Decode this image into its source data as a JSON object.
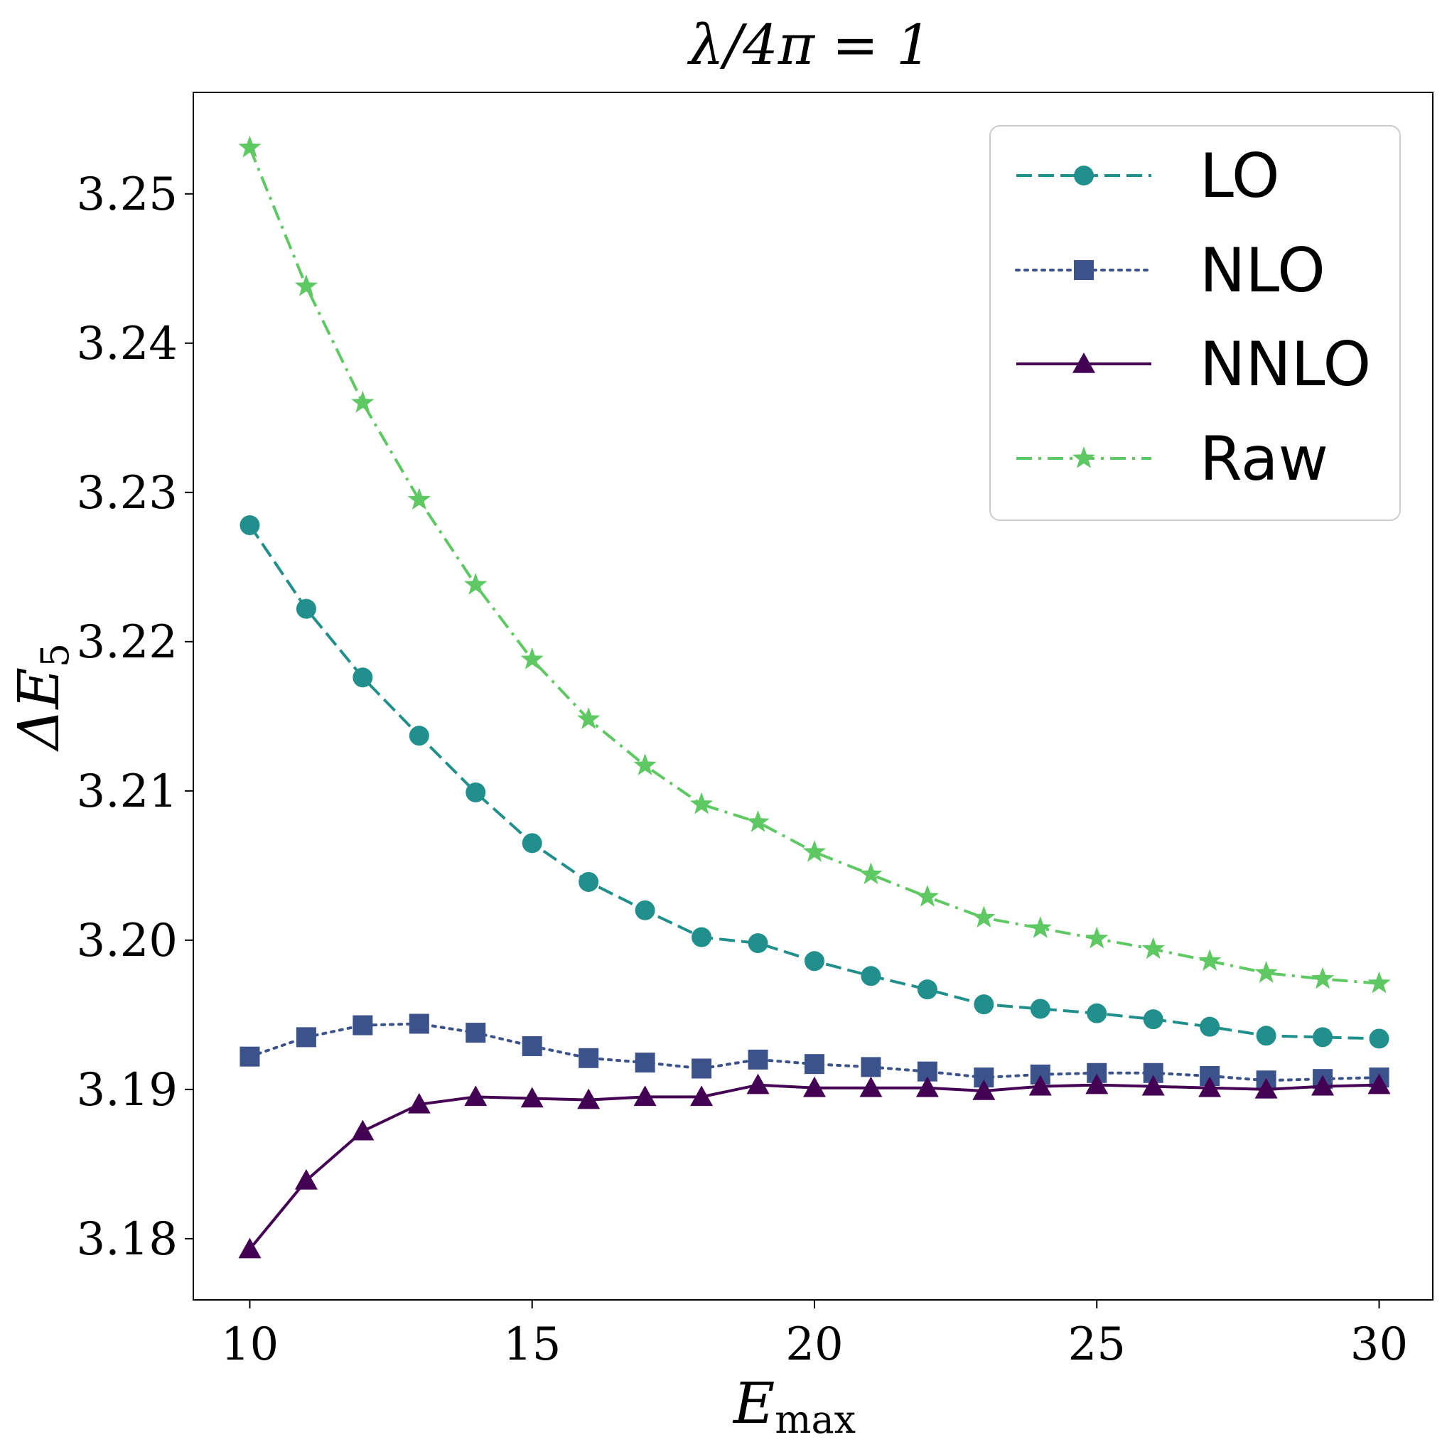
{
  "chart_data": {
    "type": "line",
    "title": "λ/4π = 1",
    "xlabel": "E",
    "xlabel_sub": "max",
    "ylabel": "ΔE",
    "ylabel_sub": "5",
    "xlim": [
      9,
      30.95
    ],
    "ylim": [
      3.1759,
      3.2568
    ],
    "xticks": [
      10,
      15,
      20,
      25,
      30
    ],
    "yticks": [
      3.18,
      3.19,
      3.2,
      3.21,
      3.22,
      3.23,
      3.24,
      3.25
    ],
    "ytick_labels": [
      "3.18",
      "3.19",
      "3.20",
      "3.21",
      "3.22",
      "3.23",
      "3.24",
      "3.25"
    ],
    "x": [
      10,
      11,
      12,
      13,
      14,
      15,
      16,
      17,
      18,
      19,
      20,
      21,
      22,
      23,
      24,
      25,
      26,
      27,
      28,
      29,
      30
    ],
    "legend_position": "top-right",
    "series": [
      {
        "name": "LO",
        "color": "#21908d",
        "linestyle": "dashed",
        "marker": "circle",
        "values": [
          3.2278,
          3.2222,
          3.2176,
          3.2137,
          3.2099,
          3.2065,
          3.2039,
          3.202,
          3.2002,
          3.1998,
          3.1986,
          3.1976,
          3.1967,
          3.1957,
          3.1954,
          3.1951,
          3.1947,
          3.1942,
          3.1936,
          3.1935,
          3.1934
        ]
      },
      {
        "name": "NLO",
        "color": "#3b528b",
        "linestyle": "dotted",
        "marker": "square",
        "values": [
          3.1922,
          3.1935,
          3.1943,
          3.1944,
          3.1938,
          3.1929,
          3.1921,
          3.1918,
          3.1914,
          3.192,
          3.1917,
          3.1915,
          3.1912,
          3.1908,
          3.191,
          3.1911,
          3.1911,
          3.1909,
          3.1906,
          3.1907,
          3.1908
        ]
      },
      {
        "name": "NNLO",
        "color": "#440154",
        "linestyle": "solid",
        "marker": "triangle",
        "values": [
          3.1793,
          3.1839,
          3.1872,
          3.189,
          3.1895,
          3.1894,
          3.1893,
          3.1895,
          3.1895,
          3.1903,
          3.1901,
          3.1901,
          3.1901,
          3.1899,
          3.1902,
          3.1903,
          3.1902,
          3.1901,
          3.19,
          3.1902,
          3.1903
        ]
      },
      {
        "name": "Raw",
        "color": "#5ec962",
        "linestyle": "dashdot",
        "marker": "star",
        "values": [
          3.2531,
          3.2438,
          3.236,
          3.2295,
          3.2238,
          3.2188,
          3.2148,
          3.2117,
          3.2091,
          3.2079,
          3.2059,
          3.2044,
          3.2029,
          3.2015,
          3.2008,
          3.2001,
          3.1994,
          3.1986,
          3.1978,
          3.1974,
          3.1971
        ]
      }
    ]
  }
}
